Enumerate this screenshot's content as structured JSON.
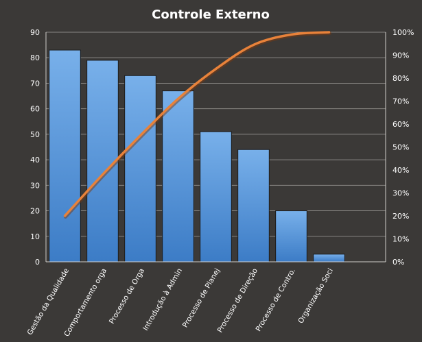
{
  "chart_data": {
    "type": "bar",
    "title": "Controle  Externo",
    "categories": [
      "Gestão da Qualidade",
      "Comportamento orga",
      "Processo de Orga",
      "Introdução à Admin",
      "Processo de Planej",
      "Processo de Direção",
      "Processo de Contro.",
      "Organização Soci"
    ],
    "series": [
      {
        "type": "bar",
        "axis": "left",
        "color": "#4f8fd6",
        "values": [
          83,
          79,
          73,
          67,
          51,
          44,
          20,
          3
        ]
      },
      {
        "type": "line",
        "axis": "right",
        "color": "#e8823a",
        "values_percent": [
          20,
          38,
          55,
          71,
          84,
          94.5,
          99,
          100
        ]
      }
    ],
    "ylim": [
      0,
      90
    ],
    "y_ticks": [
      "0",
      "10",
      "20",
      "30",
      "40",
      "50",
      "60",
      "70",
      "80",
      "90"
    ],
    "y2lim": [
      0,
      100
    ],
    "y2_ticks": [
      "0%",
      "10%",
      "20%",
      "30%",
      "40%",
      "50%",
      "60%",
      "70%",
      "80%",
      "90%",
      "100%"
    ],
    "grid": true,
    "legend": "none",
    "background_color": "#3b3937",
    "gridline_color": "#8a8885"
  }
}
